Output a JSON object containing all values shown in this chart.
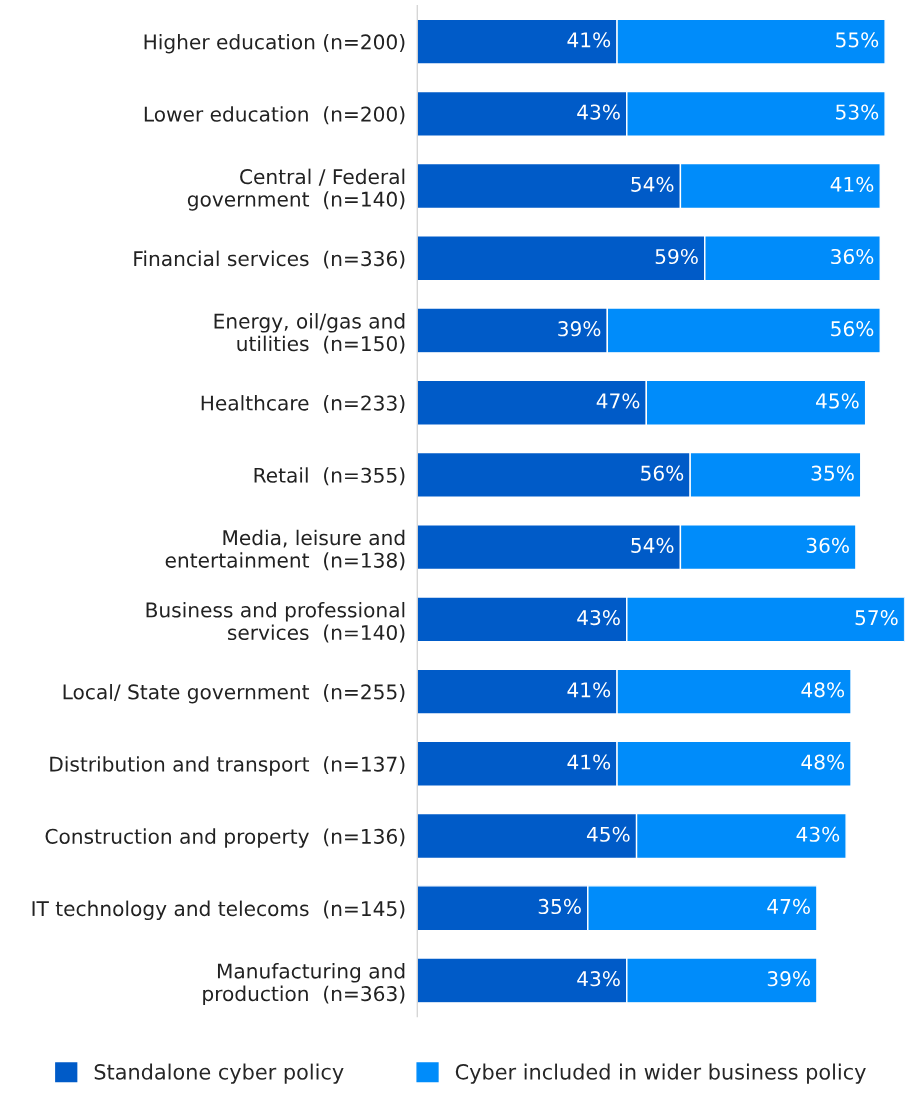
{
  "chart_data": {
    "type": "bar",
    "orientation": "horizontal",
    "stacked": true,
    "legend": "bottom",
    "grid": false,
    "categories": [
      "Higher education (n=200)",
      "Lower education  (n=200)",
      "Central / Federal\ngovernment  (n=140)",
      "Financial services  (n=336)",
      "Energy, oil/gas and\nutilities  (n=150)",
      "Healthcare  (n=233)",
      "Retail  (n=355)",
      "Media, leisure and\nentertainment  (n=138)",
      "Business and professional\nservices  (n=140)",
      "Local/ State government  (n=255)",
      "Distribution and transport  (n=137)",
      "Construction and property  (n=136)",
      "IT technology and telecoms  (n=145)",
      "Manufacturing and\nproduction  (n=363)"
    ],
    "series": [
      {
        "name": "Standalone cyber policy",
        "color": "#005bc8",
        "values": [
          41,
          43,
          54,
          59,
          39,
          47,
          56,
          54,
          43,
          41,
          41,
          45,
          35,
          43
        ],
        "value_labels": [
          "41%",
          "43%",
          "54%",
          "59%",
          "39%",
          "47%",
          "56%",
          "54%",
          "43%",
          "41%",
          "41%",
          "45%",
          "35%",
          "43%"
        ]
      },
      {
        "name": "Cyber included in wider business policy",
        "color": "#008cfa",
        "values": [
          55,
          53,
          41,
          36,
          56,
          45,
          35,
          36,
          57,
          48,
          48,
          43,
          47,
          39
        ],
        "value_labels": [
          "55%",
          "53%",
          "41%",
          "36%",
          "56%",
          "45%",
          "35%",
          "36%",
          "57%",
          "48%",
          "48%",
          "43%",
          "47%",
          "39%"
        ]
      }
    ]
  }
}
